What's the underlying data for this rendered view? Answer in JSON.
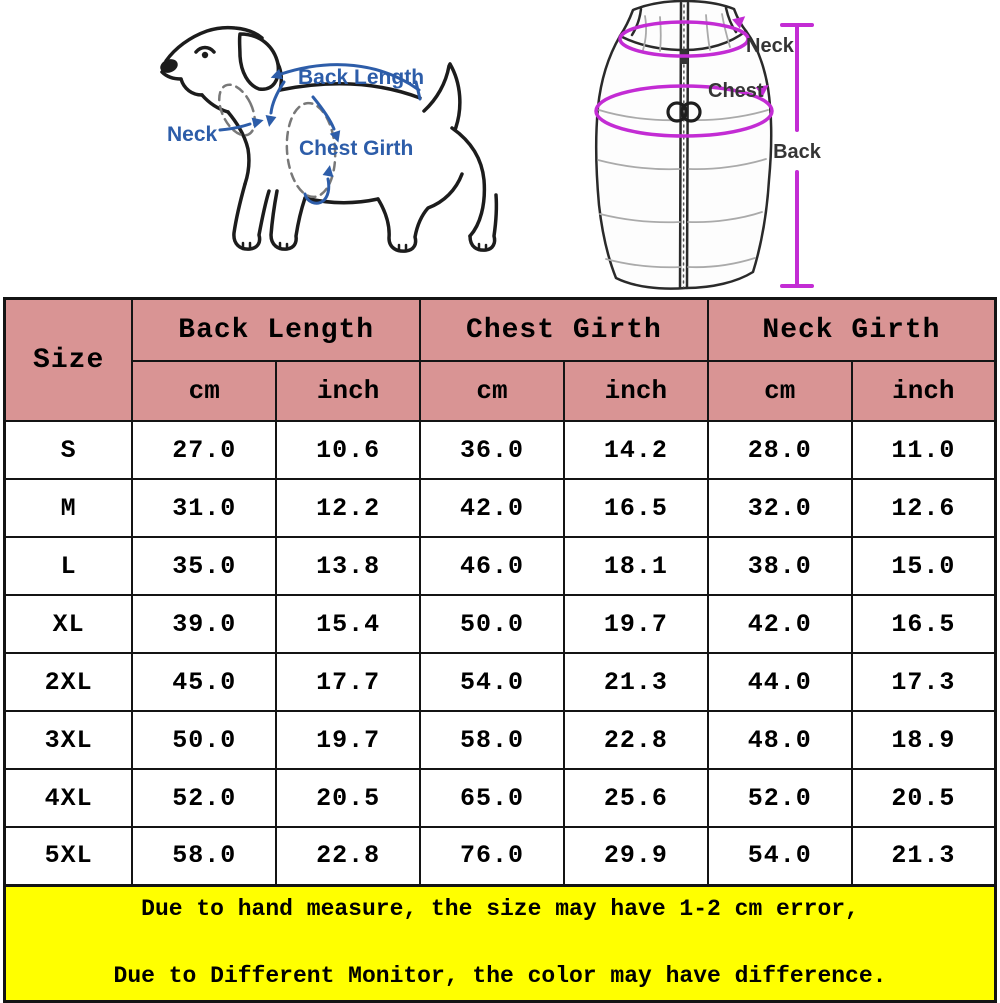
{
  "diagrams": {
    "dog": {
      "back_length_label": "Back Length",
      "neck_label": "Neck",
      "chest_girth_label": "Chest Girth",
      "annotation_color": "#2d5da9"
    },
    "vest": {
      "neck_label": "Neck",
      "chest_label": "Chest",
      "back_label": "Back",
      "annotation_color": "#c32cd4",
      "label_color": "#353535"
    }
  },
  "size_table": {
    "header_bg": "#d99494",
    "header": {
      "size_label": "Size",
      "groups": [
        {
          "label": "Back Length"
        },
        {
          "label": "Chest Girth"
        },
        {
          "label": "Neck Girth"
        }
      ],
      "units": [
        "cm",
        "inch",
        "cm",
        "inch",
        "cm",
        "inch"
      ]
    },
    "rows": [
      {
        "size": "S",
        "values": [
          "27.0",
          "10.6",
          "36.0",
          "14.2",
          "28.0",
          "11.0"
        ]
      },
      {
        "size": "M",
        "values": [
          "31.0",
          "12.2",
          "42.0",
          "16.5",
          "32.0",
          "12.6"
        ]
      },
      {
        "size": "L",
        "values": [
          "35.0",
          "13.8",
          "46.0",
          "18.1",
          "38.0",
          "15.0"
        ]
      },
      {
        "size": "XL",
        "values": [
          "39.0",
          "15.4",
          "50.0",
          "19.7",
          "42.0",
          "16.5"
        ]
      },
      {
        "size": "2XL",
        "values": [
          "45.0",
          "17.7",
          "54.0",
          "21.3",
          "44.0",
          "17.3"
        ]
      },
      {
        "size": "3XL",
        "values": [
          "50.0",
          "19.7",
          "58.0",
          "22.8",
          "48.0",
          "18.9"
        ]
      },
      {
        "size": "4XL",
        "values": [
          "52.0",
          "20.5",
          "65.0",
          "25.6",
          "52.0",
          "20.5"
        ]
      },
      {
        "size": "5XL",
        "values": [
          "58.0",
          "22.8",
          "76.0",
          "29.9",
          "54.0",
          "21.3"
        ]
      }
    ]
  },
  "notice": {
    "bg": "#ffff00",
    "line1": "Due to hand measure, the size may have 1-2 cm error,",
    "line2": "Due to Different Monitor, the color may have difference."
  },
  "chart_data": {
    "type": "table",
    "columns": [
      "Size",
      "Back Length cm",
      "Back Length inch",
      "Chest Girth cm",
      "Chest Girth inch",
      "Neck Girth cm",
      "Neck Girth inch"
    ],
    "rows": [
      [
        "S",
        27.0,
        10.6,
        36.0,
        14.2,
        28.0,
        11.0
      ],
      [
        "M",
        31.0,
        12.2,
        42.0,
        16.5,
        32.0,
        12.6
      ],
      [
        "L",
        35.0,
        13.8,
        46.0,
        18.1,
        38.0,
        15.0
      ],
      [
        "XL",
        39.0,
        15.4,
        50.0,
        19.7,
        42.0,
        16.5
      ],
      [
        "2XL",
        45.0,
        17.7,
        54.0,
        21.3,
        44.0,
        17.3
      ],
      [
        "3XL",
        50.0,
        19.7,
        58.0,
        22.8,
        48.0,
        18.9
      ],
      [
        "4XL",
        52.0,
        20.5,
        65.0,
        25.6,
        52.0,
        20.5
      ],
      [
        "5XL",
        58.0,
        22.8,
        76.0,
        29.9,
        54.0,
        21.3
      ]
    ]
  }
}
